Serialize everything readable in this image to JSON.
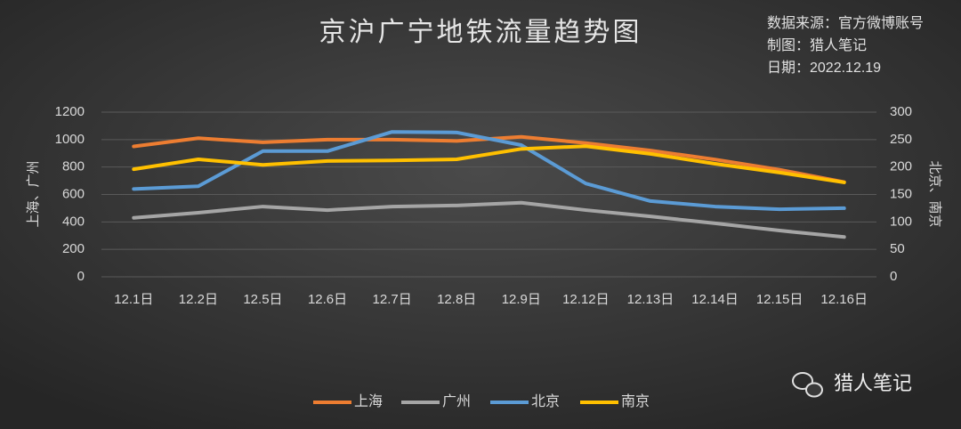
{
  "chart_data": {
    "type": "line",
    "title": "京沪广宁地铁流量趋势图",
    "annotations": [
      "数据来源：官方微博账号",
      "制图：猎人笔记",
      "日期：2022.12.19",
      "猎人笔记"
    ],
    "ylabel": "上海、广州",
    "y2label": "北京、南京",
    "categories": [
      "12.1日",
      "12.2日",
      "12.5日",
      "12.6日",
      "12.7日",
      "12.8日",
      "12.9日",
      "12.12日",
      "12.13日",
      "12.14日",
      "12.15日",
      "12.16日"
    ],
    "series": [
      {
        "name": "上海",
        "color": "#ed7d31",
        "values": [
          950,
          1010,
          980,
          1000,
          1000,
          990,
          1020,
          975,
          920,
          855,
          780,
          690
        ]
      },
      {
        "name": "广州",
        "color": "#a5a5a5",
        "values": [
          430,
          467,
          512,
          486,
          512,
          520,
          540,
          486,
          440,
          390,
          337,
          290
        ]
      },
      {
        "name": "北京",
        "color": "#5b9bd5",
        "values": [
          160,
          165,
          229,
          229,
          264,
          263,
          240,
          170,
          138,
          128,
          123,
          125
        ],
        "axis": "y2"
      },
      {
        "name": "南京",
        "color": "#ffc000",
        "values": [
          196,
          214,
          204,
          211,
          212,
          214,
          233,
          238,
          224,
          206,
          190,
          172
        ],
        "axis": "y2"
      }
    ],
    "ylim": [
      0,
      1200
    ],
    "yticks": [
      0,
      200,
      400,
      600,
      800,
      1000,
      1200
    ],
    "y2lim": [
      0,
      300
    ],
    "y2ticks": [
      0,
      50,
      100,
      150,
      200,
      250,
      300
    ],
    "grid": true
  }
}
